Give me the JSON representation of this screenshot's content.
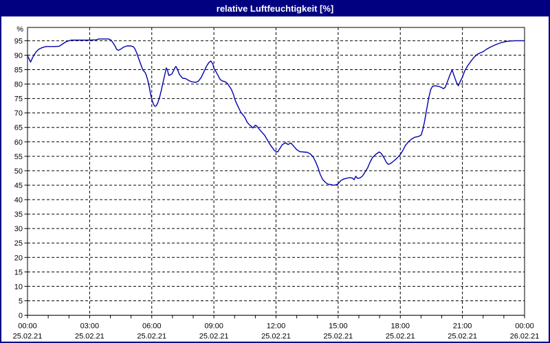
{
  "window": {
    "title": "relative Luftfeuchtigkeit [%]"
  },
  "colors": {
    "titlebar_bg": "#000080",
    "titlebar_text": "#ffffff",
    "window_border": "#000080",
    "background": "#ffffff",
    "frame": "#000000",
    "grid": "#000000",
    "tick_label": "#000000",
    "line": "#0000aa"
  },
  "chart_data": {
    "type": "line",
    "title": "relative Luftfeuchtigkeit [%]",
    "ylabel": "%",
    "xlabel": "",
    "ylim": [
      0,
      99.6
    ],
    "yticks": [
      0,
      5,
      10,
      15,
      20,
      25,
      30,
      35,
      40,
      45,
      50,
      55,
      60,
      65,
      70,
      75,
      80,
      85,
      90,
      95
    ],
    "xlim_hours": [
      0,
      24
    ],
    "x_major_tick_hours": [
      0,
      3,
      6,
      9,
      12,
      15,
      18,
      21,
      24
    ],
    "x_minor_tick_interval_hours": 1,
    "grid_style": "dashed",
    "legend": "none",
    "x_tick_labels": [
      {
        "hour": 0,
        "time": "00:00",
        "date": "25.02.21"
      },
      {
        "hour": 3,
        "time": "03:00",
        "date": "25.02.21"
      },
      {
        "hour": 6,
        "time": "06:00",
        "date": "25.02.21"
      },
      {
        "hour": 9,
        "time": "09:00",
        "date": "25.02.21"
      },
      {
        "hour": 12,
        "time": "12:00",
        "date": "25.02.21"
      },
      {
        "hour": 15,
        "time": "15:00",
        "date": "25.02.21"
      },
      {
        "hour": 18,
        "time": "18:00",
        "date": "25.02.21"
      },
      {
        "hour": 21,
        "time": "21:00",
        "date": "25.02.21"
      },
      {
        "hour": 24,
        "time": "00:00",
        "date": "26.02.21"
      }
    ],
    "series": [
      {
        "name": "relative Luftfeuchtigkeit [%]",
        "color": "#0000aa",
        "points": [
          [
            0,
            89.8
          ],
          [
            0.08,
            88.6
          ],
          [
            0.15,
            87.6
          ],
          [
            0.25,
            89.2
          ],
          [
            0.33,
            90.2
          ],
          [
            0.42,
            91.2
          ],
          [
            0.55,
            92.1
          ],
          [
            0.67,
            92.5
          ],
          [
            0.8,
            92.8
          ],
          [
            0.92,
            93
          ],
          [
            1.3,
            93
          ],
          [
            1.53,
            93.1
          ],
          [
            1.7,
            93.9
          ],
          [
            1.85,
            94.6
          ],
          [
            2,
            95
          ],
          [
            2.1,
            95.2
          ],
          [
            2.6,
            95.2
          ],
          [
            3,
            95.2
          ],
          [
            3.3,
            95.3
          ],
          [
            3.45,
            95.6
          ],
          [
            3.9,
            95.6
          ],
          [
            4,
            95.4
          ],
          [
            4.1,
            94.6
          ],
          [
            4.2,
            93.5
          ],
          [
            4.32,
            91.9
          ],
          [
            4.4,
            91.7
          ],
          [
            4.5,
            92.1
          ],
          [
            4.65,
            92.8
          ],
          [
            4.8,
            93.2
          ],
          [
            5,
            93.2
          ],
          [
            5.12,
            92.9
          ],
          [
            5.2,
            92
          ],
          [
            5.28,
            90.6
          ],
          [
            5.37,
            88.8
          ],
          [
            5.47,
            86.8
          ],
          [
            5.57,
            84.9
          ],
          [
            5.67,
            84.1
          ],
          [
            5.73,
            83.2
          ],
          [
            5.8,
            81.5
          ],
          [
            5.88,
            79
          ],
          [
            5.95,
            76.3
          ],
          [
            6.02,
            74.3
          ],
          [
            6.08,
            73
          ],
          [
            6.15,
            72.3
          ],
          [
            6.22,
            72.5
          ],
          [
            6.3,
            73.7
          ],
          [
            6.38,
            75.5
          ],
          [
            6.45,
            77.5
          ],
          [
            6.52,
            79.8
          ],
          [
            6.6,
            82.3
          ],
          [
            6.67,
            84.5
          ],
          [
            6.7,
            85.6
          ],
          [
            6.75,
            85
          ],
          [
            6.82,
            83
          ],
          [
            6.9,
            83.2
          ],
          [
            6.97,
            83.5
          ],
          [
            7.05,
            84.6
          ],
          [
            7.13,
            85.8
          ],
          [
            7.17,
            86.1
          ],
          [
            7.25,
            84.9
          ],
          [
            7.33,
            83.4
          ],
          [
            7.42,
            82.6
          ],
          [
            7.5,
            82
          ],
          [
            7.63,
            81.9
          ],
          [
            7.75,
            81.4
          ],
          [
            7.88,
            80.9
          ],
          [
            8,
            80.7
          ],
          [
            8.13,
            80.6
          ],
          [
            8.25,
            81
          ],
          [
            8.38,
            82.2
          ],
          [
            8.5,
            84
          ],
          [
            8.63,
            86
          ],
          [
            8.75,
            87.4
          ],
          [
            8.85,
            88
          ],
          [
            8.95,
            87
          ],
          [
            9,
            85.4
          ],
          [
            9.1,
            84.3
          ],
          [
            9.2,
            83
          ],
          [
            9.3,
            81.6
          ],
          [
            9.4,
            81.1
          ],
          [
            9.55,
            80.8
          ],
          [
            9.65,
            80.2
          ],
          [
            9.75,
            79.2
          ],
          [
            9.85,
            78.1
          ],
          [
            9.95,
            76.3
          ],
          [
            10,
            74.9
          ],
          [
            10.1,
            73.2
          ],
          [
            10.2,
            71.7
          ],
          [
            10.3,
            70.2
          ],
          [
            10.42,
            69.2
          ],
          [
            10.5,
            68.4
          ],
          [
            10.6,
            66.9
          ],
          [
            10.7,
            66
          ],
          [
            10.8,
            65.4
          ],
          [
            10.88,
            64.8
          ],
          [
            11,
            65.8
          ],
          [
            11.08,
            65.4
          ],
          [
            11.2,
            64.3
          ],
          [
            11.32,
            63.3
          ],
          [
            11.45,
            62.3
          ],
          [
            11.58,
            60.7
          ],
          [
            11.7,
            59.2
          ],
          [
            11.82,
            58
          ],
          [
            11.92,
            57
          ],
          [
            12,
            56.7
          ],
          [
            12.08,
            56.5
          ],
          [
            12.17,
            57.5
          ],
          [
            12.3,
            59
          ],
          [
            12.45,
            59.7
          ],
          [
            12.58,
            59.1
          ],
          [
            12.72,
            59.6
          ],
          [
            12.85,
            58.5
          ],
          [
            13,
            57.3
          ],
          [
            13.15,
            56.6
          ],
          [
            13.3,
            56.5
          ],
          [
            13.5,
            56.4
          ],
          [
            13.65,
            55.9
          ],
          [
            13.8,
            54.7
          ],
          [
            13.92,
            53
          ],
          [
            14.03,
            51
          ],
          [
            14.13,
            48.8
          ],
          [
            14.25,
            47
          ],
          [
            14.38,
            46
          ],
          [
            14.5,
            45.4
          ],
          [
            14.65,
            45.2
          ],
          [
            14.8,
            45
          ],
          [
            14.92,
            45.2
          ],
          [
            15,
            45.5
          ],
          [
            15.13,
            46.6
          ],
          [
            15.25,
            47.1
          ],
          [
            15.4,
            47.4
          ],
          [
            15.55,
            47.6
          ],
          [
            15.68,
            47.5
          ],
          [
            15.77,
            46.9
          ],
          [
            15.85,
            48.1
          ],
          [
            15.93,
            47.4
          ],
          [
            16.05,
            47.5
          ],
          [
            16.18,
            48.2
          ],
          [
            16.3,
            49.6
          ],
          [
            16.42,
            51
          ],
          [
            16.53,
            52.8
          ],
          [
            16.65,
            54.5
          ],
          [
            16.8,
            55.6
          ],
          [
            16.98,
            56.5
          ],
          [
            17.08,
            56
          ],
          [
            17.2,
            54.7
          ],
          [
            17.32,
            53
          ],
          [
            17.42,
            52.2
          ],
          [
            17.53,
            52.5
          ],
          [
            17.67,
            53.3
          ],
          [
            17.82,
            54.2
          ],
          [
            18,
            55.6
          ],
          [
            18.12,
            57
          ],
          [
            18.25,
            58.8
          ],
          [
            18.4,
            60.1
          ],
          [
            18.55,
            61
          ],
          [
            18.7,
            61.6
          ],
          [
            18.85,
            61.8
          ],
          [
            19,
            62.3
          ],
          [
            19.08,
            64
          ],
          [
            19.17,
            67
          ],
          [
            19.28,
            71.5
          ],
          [
            19.38,
            75.5
          ],
          [
            19.48,
            78.3
          ],
          [
            19.57,
            79.3
          ],
          [
            19.7,
            79.4
          ],
          [
            19.85,
            79.2
          ],
          [
            20,
            78.8
          ],
          [
            20.08,
            78.4
          ],
          [
            20.17,
            78.9
          ],
          [
            20.28,
            80.9
          ],
          [
            20.4,
            83.2
          ],
          [
            20.5,
            84.9
          ],
          [
            20.6,
            82.8
          ],
          [
            20.7,
            80.8
          ],
          [
            20.8,
            79.4
          ],
          [
            20.9,
            81
          ],
          [
            21,
            82.4
          ],
          [
            21.12,
            84.7
          ],
          [
            21.25,
            86.3
          ],
          [
            21.4,
            87.8
          ],
          [
            21.55,
            89.2
          ],
          [
            21.7,
            90.2
          ],
          [
            21.85,
            90.8
          ],
          [
            22,
            91.2
          ],
          [
            22.15,
            92
          ],
          [
            22.32,
            92.7
          ],
          [
            22.5,
            93.3
          ],
          [
            22.7,
            93.9
          ],
          [
            22.9,
            94.4
          ],
          [
            23.1,
            94.7
          ],
          [
            23.3,
            94.9
          ],
          [
            23.55,
            95
          ],
          [
            24,
            95
          ]
        ]
      }
    ]
  }
}
